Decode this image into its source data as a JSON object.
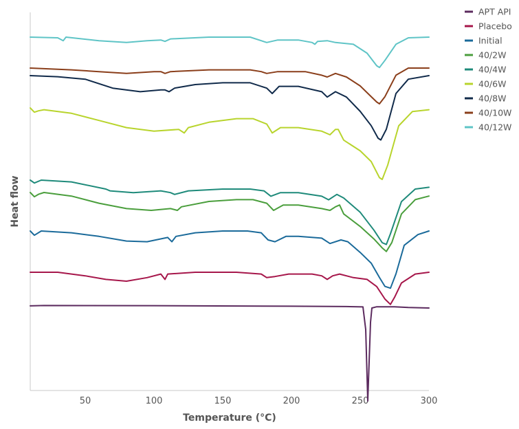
{
  "chart_data": {
    "type": "line",
    "xlabel": "Temperature (°C)",
    "ylabel": "Heat flow",
    "xlim": [
      10,
      300
    ],
    "x_ticks": [
      50,
      100,
      150,
      200,
      250,
      300
    ],
    "y_ticks_shown": false,
    "grid": false,
    "legend_position": "top-right",
    "series": [
      {
        "name": "APT API",
        "color": "#5B2A5E",
        "points": [
          [
            10,
            0.06
          ],
          [
            20,
            0.07
          ],
          [
            100,
            0.065
          ],
          [
            200,
            0.05
          ],
          [
            240,
            0.04
          ],
          [
            252,
            0.03
          ],
          [
            254,
            -0.6
          ],
          [
            255.5,
            -2.6
          ],
          [
            256.5,
            -1.5
          ],
          [
            257.5,
            -0.4
          ],
          [
            258.5,
            0.0
          ],
          [
            262,
            0.035
          ],
          [
            275,
            0.035
          ],
          [
            285,
            0.015
          ],
          [
            300,
            0.0
          ]
        ]
      },
      {
        "name": "Placebo",
        "color": "#A6164A",
        "points": [
          [
            10,
            0.0
          ],
          [
            30,
            0.0
          ],
          [
            50,
            -0.1
          ],
          [
            65,
            -0.2
          ],
          [
            80,
            -0.25
          ],
          [
            95,
            -0.15
          ],
          [
            105,
            -0.05
          ],
          [
            108,
            -0.2
          ],
          [
            110,
            -0.05
          ],
          [
            130,
            0.0
          ],
          [
            160,
            0.0
          ],
          [
            178,
            -0.05
          ],
          [
            182,
            -0.15
          ],
          [
            188,
            -0.12
          ],
          [
            198,
            -0.05
          ],
          [
            215,
            -0.05
          ],
          [
            222,
            -0.1
          ],
          [
            226,
            -0.2
          ],
          [
            230,
            -0.1
          ],
          [
            235,
            -0.05
          ],
          [
            245,
            -0.15
          ],
          [
            255,
            -0.2
          ],
          [
            262,
            -0.4
          ],
          [
            268,
            -0.75
          ],
          [
            272,
            -0.9
          ],
          [
            275,
            -0.7
          ],
          [
            280,
            -0.3
          ],
          [
            290,
            -0.05
          ],
          [
            300,
            0.0
          ]
        ]
      },
      {
        "name": "Initial",
        "color": "#1A6A9A",
        "points": [
          [
            10,
            0.0
          ],
          [
            13,
            -0.12
          ],
          [
            18,
            0.0
          ],
          [
            40,
            -0.05
          ],
          [
            60,
            -0.15
          ],
          [
            80,
            -0.28
          ],
          [
            95,
            -0.3
          ],
          [
            110,
            -0.18
          ],
          [
            113,
            -0.3
          ],
          [
            116,
            -0.15
          ],
          [
            130,
            -0.05
          ],
          [
            150,
            0.0
          ],
          [
            168,
            0.0
          ],
          [
            178,
            -0.05
          ],
          [
            183,
            -0.25
          ],
          [
            188,
            -0.3
          ],
          [
            196,
            -0.15
          ],
          [
            205,
            -0.15
          ],
          [
            222,
            -0.2
          ],
          [
            228,
            -0.35
          ],
          [
            236,
            -0.25
          ],
          [
            241,
            -0.3
          ],
          [
            250,
            -0.6
          ],
          [
            258,
            -0.9
          ],
          [
            264,
            -1.3
          ],
          [
            268,
            -1.55
          ],
          [
            272,
            -1.6
          ],
          [
            276,
            -1.2
          ],
          [
            282,
            -0.4
          ],
          [
            292,
            -0.1
          ],
          [
            300,
            0.0
          ]
        ]
      },
      {
        "name": "40/2W",
        "color": "#4A9E3C",
        "points": [
          [
            10,
            0.0
          ],
          [
            13,
            -0.12
          ],
          [
            16,
            -0.05
          ],
          [
            20,
            0.0
          ],
          [
            40,
            -0.1
          ],
          [
            60,
            -0.3
          ],
          [
            80,
            -0.45
          ],
          [
            98,
            -0.5
          ],
          [
            112,
            -0.45
          ],
          [
            117,
            -0.5
          ],
          [
            120,
            -0.4
          ],
          [
            140,
            -0.25
          ],
          [
            160,
            -0.2
          ],
          [
            172,
            -0.2
          ],
          [
            182,
            -0.3
          ],
          [
            187,
            -0.5
          ],
          [
            194,
            -0.35
          ],
          [
            205,
            -0.35
          ],
          [
            222,
            -0.45
          ],
          [
            228,
            -0.5
          ],
          [
            232,
            -0.4
          ],
          [
            235,
            -0.35
          ],
          [
            238,
            -0.6
          ],
          [
            250,
            -0.95
          ],
          [
            260,
            -1.3
          ],
          [
            266,
            -1.55
          ],
          [
            269,
            -1.65
          ],
          [
            273,
            -1.4
          ],
          [
            280,
            -0.6
          ],
          [
            290,
            -0.2
          ],
          [
            300,
            -0.1
          ]
        ]
      },
      {
        "name": "40/4W",
        "color": "#1E8A7A",
        "points": [
          [
            10,
            0.0
          ],
          [
            13,
            -0.08
          ],
          [
            18,
            0.0
          ],
          [
            40,
            -0.05
          ],
          [
            65,
            -0.25
          ],
          [
            68,
            -0.3
          ],
          [
            85,
            -0.35
          ],
          [
            105,
            -0.3
          ],
          [
            112,
            -0.35
          ],
          [
            115,
            -0.4
          ],
          [
            125,
            -0.3
          ],
          [
            150,
            -0.25
          ],
          [
            170,
            -0.25
          ],
          [
            180,
            -0.3
          ],
          [
            185,
            -0.45
          ],
          [
            192,
            -0.35
          ],
          [
            205,
            -0.35
          ],
          [
            222,
            -0.45
          ],
          [
            227,
            -0.55
          ],
          [
            233,
            -0.4
          ],
          [
            238,
            -0.5
          ],
          [
            250,
            -0.9
          ],
          [
            260,
            -1.4
          ],
          [
            266,
            -1.75
          ],
          [
            269,
            -1.8
          ],
          [
            272,
            -1.5
          ],
          [
            280,
            -0.6
          ],
          [
            290,
            -0.25
          ],
          [
            300,
            -0.2
          ]
        ]
      },
      {
        "name": "40/6W",
        "color": "#B8D42C",
        "points": [
          [
            10,
            0.0
          ],
          [
            13,
            -0.12
          ],
          [
            16,
            -0.08
          ],
          [
            20,
            -0.05
          ],
          [
            40,
            -0.15
          ],
          [
            60,
            -0.35
          ],
          [
            80,
            -0.55
          ],
          [
            100,
            -0.65
          ],
          [
            118,
            -0.6
          ],
          [
            122,
            -0.7
          ],
          [
            125,
            -0.55
          ],
          [
            140,
            -0.4
          ],
          [
            160,
            -0.3
          ],
          [
            172,
            -0.3
          ],
          [
            182,
            -0.45
          ],
          [
            186,
            -0.7
          ],
          [
            192,
            -0.55
          ],
          [
            205,
            -0.55
          ],
          [
            222,
            -0.65
          ],
          [
            228,
            -0.75
          ],
          [
            232,
            -0.6
          ],
          [
            234,
            -0.6
          ],
          [
            238,
            -0.9
          ],
          [
            250,
            -1.2
          ],
          [
            258,
            -1.5
          ],
          [
            264,
            -1.95
          ],
          [
            266,
            -2.0
          ],
          [
            270,
            -1.6
          ],
          [
            278,
            -0.5
          ],
          [
            288,
            -0.1
          ],
          [
            300,
            -0.05
          ]
        ]
      },
      {
        "name": "40/8W",
        "color": "#102A4A",
        "points": [
          [
            10,
            0.0
          ],
          [
            30,
            -0.03
          ],
          [
            50,
            -0.1
          ],
          [
            70,
            -0.35
          ],
          [
            90,
            -0.45
          ],
          [
            105,
            -0.4
          ],
          [
            108,
            -0.4
          ],
          [
            111,
            -0.45
          ],
          [
            115,
            -0.35
          ],
          [
            130,
            -0.25
          ],
          [
            150,
            -0.2
          ],
          [
            170,
            -0.2
          ],
          [
            182,
            -0.35
          ],
          [
            186,
            -0.5
          ],
          [
            191,
            -0.3
          ],
          [
            205,
            -0.3
          ],
          [
            222,
            -0.45
          ],
          [
            226,
            -0.6
          ],
          [
            232,
            -0.45
          ],
          [
            240,
            -0.6
          ],
          [
            250,
            -1.0
          ],
          [
            258,
            -1.4
          ],
          [
            263,
            -1.75
          ],
          [
            265,
            -1.8
          ],
          [
            269,
            -1.5
          ],
          [
            276,
            -0.5
          ],
          [
            285,
            -0.1
          ],
          [
            300,
            0.0
          ]
        ]
      },
      {
        "name": "40/10W",
        "color": "#8A3E1A",
        "points": [
          [
            10,
            0.0
          ],
          [
            40,
            -0.05
          ],
          [
            60,
            -0.1
          ],
          [
            80,
            -0.15
          ],
          [
            100,
            -0.1
          ],
          [
            105,
            -0.1
          ],
          [
            108,
            -0.15
          ],
          [
            112,
            -0.1
          ],
          [
            140,
            -0.05
          ],
          [
            170,
            -0.05
          ],
          [
            178,
            -0.1
          ],
          [
            182,
            -0.15
          ],
          [
            190,
            -0.1
          ],
          [
            210,
            -0.1
          ],
          [
            222,
            -0.2
          ],
          [
            226,
            -0.25
          ],
          [
            232,
            -0.15
          ],
          [
            240,
            -0.25
          ],
          [
            250,
            -0.5
          ],
          [
            258,
            -0.8
          ],
          [
            262,
            -0.95
          ],
          [
            264,
            -1.0
          ],
          [
            268,
            -0.8
          ],
          [
            276,
            -0.2
          ],
          [
            285,
            0.0
          ],
          [
            300,
            0.0
          ]
        ]
      },
      {
        "name": "40/12W",
        "color": "#5EC4C6",
        "points": [
          [
            10,
            0.0
          ],
          [
            30,
            -0.02
          ],
          [
            34,
            -0.1
          ],
          [
            36,
            0.0
          ],
          [
            60,
            -0.1
          ],
          [
            80,
            -0.15
          ],
          [
            95,
            -0.1
          ],
          [
            105,
            -0.08
          ],
          [
            108,
            -0.12
          ],
          [
            112,
            -0.05
          ],
          [
            140,
            0.0
          ],
          [
            170,
            0.0
          ],
          [
            178,
            -0.1
          ],
          [
            182,
            -0.15
          ],
          [
            190,
            -0.08
          ],
          [
            205,
            -0.08
          ],
          [
            215,
            -0.15
          ],
          [
            217,
            -0.2
          ],
          [
            219,
            -0.12
          ],
          [
            226,
            -0.1
          ],
          [
            232,
            -0.15
          ],
          [
            245,
            -0.2
          ],
          [
            255,
            -0.45
          ],
          [
            262,
            -0.8
          ],
          [
            264,
            -0.85
          ],
          [
            268,
            -0.65
          ],
          [
            276,
            -0.2
          ],
          [
            285,
            -0.02
          ],
          [
            300,
            0.0
          ]
        ]
      }
    ]
  }
}
